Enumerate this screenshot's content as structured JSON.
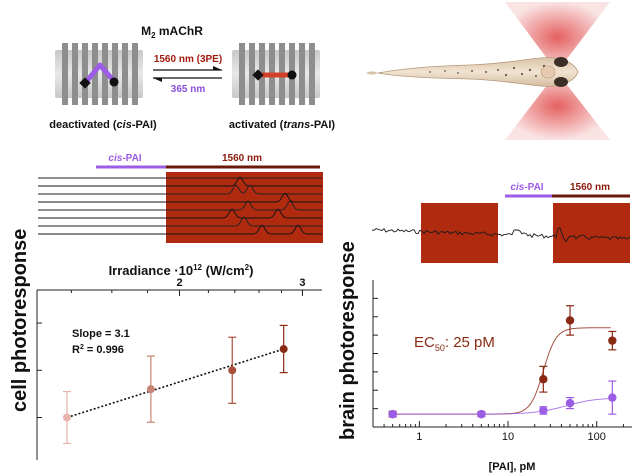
{
  "receptor": {
    "title_main": "M",
    "title_sub": "2",
    "title_rest": " mAChR",
    "forward_label": "1560 nm (3PE)",
    "reverse_label": "365 nm",
    "deactivated_prefix": "deactivated (",
    "deactivated_italic": "cis",
    "deactivated_suffix": "-PAI)",
    "activated_prefix": "activated (",
    "activated_italic": "trans",
    "activated_suffix": "-PAI)"
  },
  "cell_traces": {
    "cis_label_italic": "cis",
    "cis_label_rest": "-PAI",
    "ir_label": "1560 nm"
  },
  "brain_trace": {
    "cis_label_italic": "cis",
    "cis_label_rest": "-PAI",
    "ir_label": "1560 nm"
  },
  "labels": {
    "cell_photoresponse": "cell photoresponse",
    "brain_photoresponse": "brain photoresponse"
  },
  "colors": {
    "purple": "#9b5de5",
    "darkred": "#8b1a0a",
    "ir_box": "#b02a10",
    "laser": "#e04545"
  },
  "chart_data": [
    {
      "type": "scatter",
      "title": "",
      "xlabel_main": "Irradiance ·10",
      "xlabel_exp": "12",
      "xlabel_unit": " (W/cm",
      "xlabel_unit_exp": "2",
      "xlabel_close": ")",
      "xscale": "log",
      "xlim": [
        1.25,
        3.2
      ],
      "ylim": [
        0.6,
        4.2
      ],
      "xticks": [
        {
          "v": 2,
          "label": "2"
        },
        {
          "v": 3,
          "label": "3"
        }
      ],
      "xminor": [
        1.4,
        1.6,
        1.8,
        2.2,
        2.4,
        2.6,
        2.8,
        3.0
      ],
      "yticks": [
        1.5,
        2.5,
        3.5
      ],
      "points": [
        {
          "x": 1.38,
          "y": 1.5,
          "err": 0.55,
          "color": "#e8b4ac"
        },
        {
          "x": 1.82,
          "y": 2.1,
          "err": 0.7,
          "color": "#c98474"
        },
        {
          "x": 2.38,
          "y": 2.5,
          "err": 0.7,
          "color": "#a8503c"
        },
        {
          "x": 2.82,
          "y": 2.95,
          "err": 0.5,
          "color": "#8b2a14"
        }
      ],
      "fit": {
        "x1": 1.38,
        "y1": 1.5,
        "x2": 2.82,
        "y2": 2.95
      },
      "slope_label": "Slope = 3.1",
      "r2_main": "R",
      "r2_exp": "2",
      "r2_rest": " = 0.996"
    },
    {
      "type": "scatter",
      "title": "",
      "xlabel": "[PAI], pM",
      "xscale": "log",
      "xlim": [
        0.3,
        250
      ],
      "ylim": [
        0,
        8
      ],
      "xticks": [
        {
          "v": 1,
          "label": "1"
        },
        {
          "v": 10,
          "label": "10"
        },
        {
          "v": 100,
          "label": "100"
        }
      ],
      "yticks": [
        1,
        2,
        3,
        4,
        5,
        6,
        7
      ],
      "ec50_main": "EC",
      "ec50_sub": "50",
      "ec50_rest": ": 25 pM",
      "series": [
        {
          "color": "#8b2a14",
          "points": [
            {
              "x": 0.5,
              "y": 0.7,
              "err": 0.15
            },
            {
              "x": 5,
              "y": 0.7,
              "err": 0.12
            },
            {
              "x": 25,
              "y": 2.6,
              "err": 0.7
            },
            {
              "x": 50,
              "y": 5.8,
              "err": 0.8
            },
            {
              "x": 150,
              "y": 4.7,
              "err": 0.5
            }
          ]
        },
        {
          "color": "#9b5de5",
          "points": [
            {
              "x": 0.5,
              "y": 0.7,
              "err": 0.12
            },
            {
              "x": 5,
              "y": 0.7,
              "err": 0.12
            },
            {
              "x": 25,
              "y": 0.9,
              "err": 0.2
            },
            {
              "x": 50,
              "y": 1.3,
              "err": 0.3
            },
            {
              "x": 150,
              "y": 1.6,
              "err": 0.9
            }
          ]
        }
      ]
    }
  ]
}
